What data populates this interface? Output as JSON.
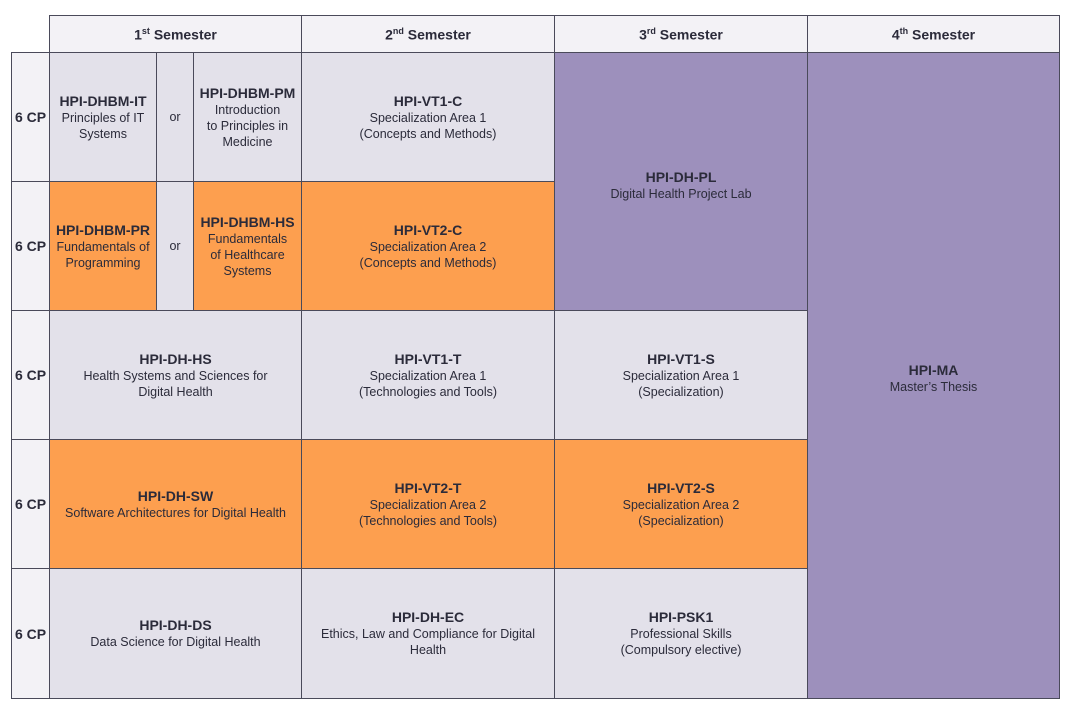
{
  "header": {
    "sem1": {
      "num": "1",
      "suffix": "st",
      "label": " Semester"
    },
    "sem2": {
      "num": "2",
      "suffix": "nd",
      "label": " Semester"
    },
    "sem3": {
      "num": "3",
      "suffix": "rd",
      "label": " Semester"
    },
    "sem4": {
      "num": "4",
      "suffix": "th",
      "label": " Semester"
    }
  },
  "rows_cp": [
    "6 CP",
    "6 CP",
    "6 CP",
    "6 CP",
    "6 CP"
  ],
  "or_label": "or",
  "modules": {
    "dhbm_it": {
      "code": "HPI-DHBM-IT",
      "desc": "Principles of IT\nSystems"
    },
    "dhbm_pm": {
      "code": "HPI-DHBM-PM",
      "desc": "Introduction\nto Principles in\nMedicine"
    },
    "dhbm_pr": {
      "code": "HPI-DHBM-PR",
      "desc": "Fundamentals of\nProgramming"
    },
    "dhbm_hs": {
      "code": "HPI-DHBM-HS",
      "desc": "Fundamentals\nof Healthcare\nSystems"
    },
    "dh_hs": {
      "code": "HPI-DH-HS",
      "desc": "Health Systems and Sciences for\nDigital Health"
    },
    "dh_sw": {
      "code": "HPI-DH-SW",
      "desc": "Software Architectures for Digital Health"
    },
    "dh_ds": {
      "code": "HPI-DH-DS",
      "desc": "Data Science for Digital Health"
    },
    "vt1_c": {
      "code": "HPI-VT1-C",
      "desc": "Specialization Area 1\n(Concepts and Methods)"
    },
    "vt2_c": {
      "code": "HPI-VT2-C",
      "desc": "Specialization Area 2\n(Concepts and Methods)"
    },
    "vt1_t": {
      "code": "HPI-VT1-T",
      "desc": "Specialization Area 1\n(Technologies and Tools)"
    },
    "vt2_t": {
      "code": "HPI-VT2-T",
      "desc": "Specialization Area 2\n(Technologies and Tools)"
    },
    "dh_ec": {
      "code": "HPI-DH-EC",
      "desc": "Ethics, Law and Compliance for Digital\nHealth"
    },
    "dh_pl": {
      "code": "HPI-DH-PL",
      "desc": "Digital Health Project Lab"
    },
    "vt1_s": {
      "code": "HPI-VT1-S",
      "desc": "Specialization Area 1\n(Specialization)"
    },
    "vt2_s": {
      "code": "HPI-VT2-S",
      "desc": "Specialization Area 2\n(Specialization)"
    },
    "psk1": {
      "code": "HPI-PSK1",
      "desc": "Professional Skills\n(Compulsory elective)"
    },
    "ma": {
      "code": "HPI-MA",
      "desc": "Master’s Thesis"
    }
  },
  "colors": {
    "gray": "#e3e1ea",
    "orange": "#fd9f4f",
    "purple": "#9d90bc",
    "header": "#f3f2f6"
  }
}
